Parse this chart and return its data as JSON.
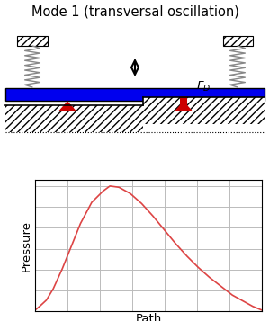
{
  "title": "Mode 1 (transversal oscillation)",
  "title_fontsize": 10.5,
  "xlabel": "Path",
  "ylabel": "Pressure",
  "blue_bar_color": "#0000ee",
  "spring_color": "#888888",
  "arrow_color": "#cc0000",
  "curve_color": "#dd4444",
  "grid_color": "#bbbbbb",
  "curve_x": [
    0.0,
    0.02,
    0.05,
    0.08,
    0.12,
    0.16,
    0.2,
    0.25,
    0.3,
    0.33,
    0.37,
    0.42,
    0.47,
    0.52,
    0.57,
    0.62,
    0.67,
    0.72,
    0.77,
    0.82,
    0.87,
    0.92,
    0.96,
    1.0
  ],
  "curve_y": [
    0.01,
    0.04,
    0.09,
    0.18,
    0.34,
    0.52,
    0.7,
    0.87,
    0.96,
    1.0,
    0.99,
    0.94,
    0.86,
    0.76,
    0.65,
    0.54,
    0.44,
    0.35,
    0.27,
    0.2,
    0.13,
    0.08,
    0.04,
    0.01
  ],
  "fig_width": 3.0,
  "fig_height": 3.57,
  "dpi": 100
}
